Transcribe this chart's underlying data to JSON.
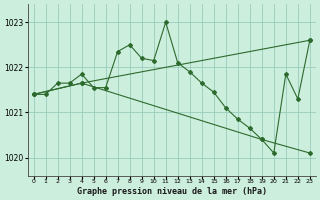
{
  "line1_x": [
    0,
    1,
    2,
    3,
    4,
    5,
    6,
    7,
    8,
    9,
    10,
    11,
    12,
    13,
    14,
    15,
    16,
    17,
    18,
    19,
    20,
    21,
    22,
    23
  ],
  "line1_y": [
    1021.4,
    1021.4,
    1021.65,
    1021.65,
    1021.85,
    1021.55,
    1021.55,
    1022.35,
    1022.5,
    1022.2,
    1022.15,
    1023.0,
    1022.1,
    1021.9,
    1021.65,
    1021.45,
    1021.1,
    1020.85,
    1020.65,
    1020.4,
    1020.1,
    1021.85,
    1021.3,
    1022.6
  ],
  "line2_x": [
    0,
    4,
    23
  ],
  "line2_y": [
    1021.4,
    1021.65,
    1022.6
  ],
  "line3_x": [
    0,
    4,
    19,
    23
  ],
  "line3_y": [
    1021.4,
    1021.65,
    1020.4,
    1020.1
  ],
  "line_color": "#2d6a2d",
  "bg_color": "#cceedd",
  "grid_color": "#99ccbb",
  "ylabel_values": [
    1020,
    1021,
    1022,
    1023
  ],
  "xlabel_values": [
    0,
    1,
    2,
    3,
    4,
    5,
    6,
    7,
    8,
    9,
    10,
    11,
    12,
    13,
    14,
    15,
    16,
    17,
    18,
    19,
    20,
    21,
    22,
    23
  ],
  "xlabel": "Graphe pression niveau de la mer (hPa)",
  "ylim": [
    1019.6,
    1023.4
  ],
  "xlim": [
    -0.5,
    23.5
  ],
  "marker": "D",
  "markersize": 2.0,
  "linewidth": 0.8,
  "title_fontsize": 5.5,
  "xlabel_fontsize": 6.0,
  "ytick_fontsize": 5.5,
  "xtick_fontsize": 4.5
}
